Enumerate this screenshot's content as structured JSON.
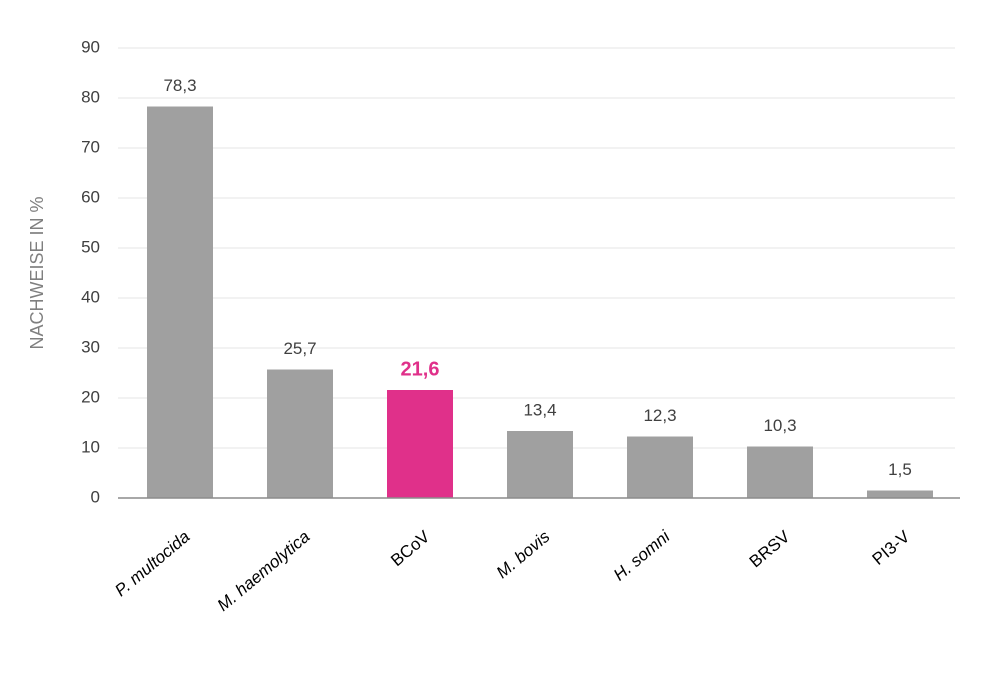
{
  "chart_data": {
    "type": "bar",
    "y_label": "NACHWEISE IN %",
    "categories": [
      "P. multocida",
      "M. haemolytica",
      "BCoV",
      "M. bovis",
      "H. somni",
      "BRSV",
      "PI3-V"
    ],
    "values": [
      78.3,
      25.7,
      21.6,
      13.4,
      12.3,
      10.3,
      1.5
    ],
    "value_labels": [
      "78,3",
      "25,7",
      "21,6",
      "13,4",
      "12,3",
      "10,3",
      "1,5"
    ],
    "colors": [
      "#a0a0a0",
      "#a0a0a0",
      "#e0308a",
      "#a0a0a0",
      "#a0a0a0",
      "#a0a0a0",
      "#a0a0a0"
    ],
    "ylim": [
      0,
      90
    ],
    "yticks": [
      0,
      10,
      20,
      30,
      40,
      50,
      60,
      70,
      80,
      90
    ],
    "grid": true
  }
}
